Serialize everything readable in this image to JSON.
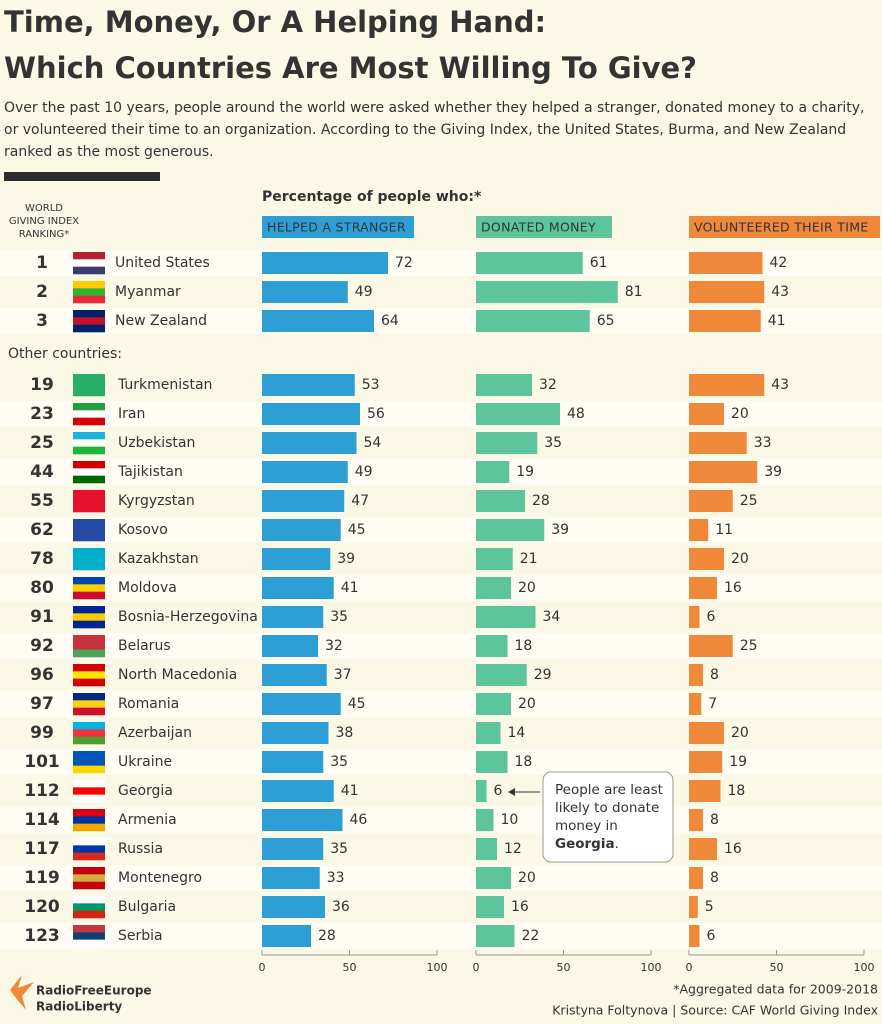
{
  "header": {
    "title_lines": [
      "Time, Money, Or A Helping Hand:",
      "Which Countries Are Most Willing To Give?"
    ],
    "subtitle_lines": [
      "Over the past 10 years, people around the world were asked whether they helped a stranger, donated money to a charity,",
      "or volunteered their time to an organization. According to the Giving Index, the United States, Burma, and New Zealand",
      "ranked as the most generous."
    ]
  },
  "chart_data": {
    "type": "bar",
    "orientation": "horizontal",
    "ranking_label": [
      "WORLD",
      "GIVING INDEX",
      "RANKING*"
    ],
    "panel_title": "Percentage of people who:*",
    "other_label": "Other countries:",
    "ranks": [
      1,
      2,
      3,
      19,
      23,
      25,
      44,
      55,
      62,
      78,
      80,
      91,
      92,
      96,
      97,
      99,
      101,
      112,
      114,
      117,
      119,
      120,
      123
    ],
    "categories": [
      "United States",
      "Myanmar",
      "New Zealand",
      "Turkmenistan",
      "Iran",
      "Uzbekistan",
      "Tajikistan",
      "Kyrgyzstan",
      "Kosovo",
      "Kazakhstan",
      "Moldova",
      "Bosnia-Herzegovina",
      "Belarus",
      "North Macedonia",
      "Romania",
      "Azerbaijan",
      "Ukraine",
      "Georgia",
      "Armenia",
      "Russia",
      "Montenegro",
      "Bulgaria",
      "Serbia"
    ],
    "series": [
      {
        "name": "HELPED A STRANGER",
        "color": "#2e9fd4",
        "values": [
          72,
          49,
          64,
          53,
          56,
          54,
          49,
          47,
          45,
          39,
          41,
          35,
          32,
          37,
          45,
          38,
          35,
          41,
          46,
          35,
          33,
          36,
          28
        ]
      },
      {
        "name": "DONATED MONEY",
        "color": "#5cc59b",
        "values": [
          61,
          81,
          65,
          32,
          48,
          35,
          19,
          28,
          39,
          21,
          20,
          34,
          18,
          29,
          20,
          14,
          18,
          6,
          10,
          12,
          20,
          16,
          22
        ]
      },
      {
        "name": "VOLUNTEERED THEIR TIME",
        "color": "#f0883a",
        "values": [
          42,
          43,
          41,
          43,
          20,
          33,
          39,
          25,
          11,
          20,
          16,
          6,
          25,
          8,
          7,
          20,
          19,
          18,
          8,
          16,
          8,
          5,
          6
        ]
      }
    ],
    "xlim": [
      0,
      100
    ],
    "xticks": [
      0,
      50,
      100
    ],
    "annotation": {
      "lines": [
        "People are least",
        "likely to donate",
        "money in"
      ],
      "bold": "Georgia",
      "end": "."
    }
  },
  "footer": {
    "note": "*Aggregated data for 2009-2018",
    "credit": "Kristyna Foltynova | Source: CAF World Giving Index",
    "logo_lines": [
      "RadioFreeEurope",
      "RadioLiberty"
    ]
  }
}
